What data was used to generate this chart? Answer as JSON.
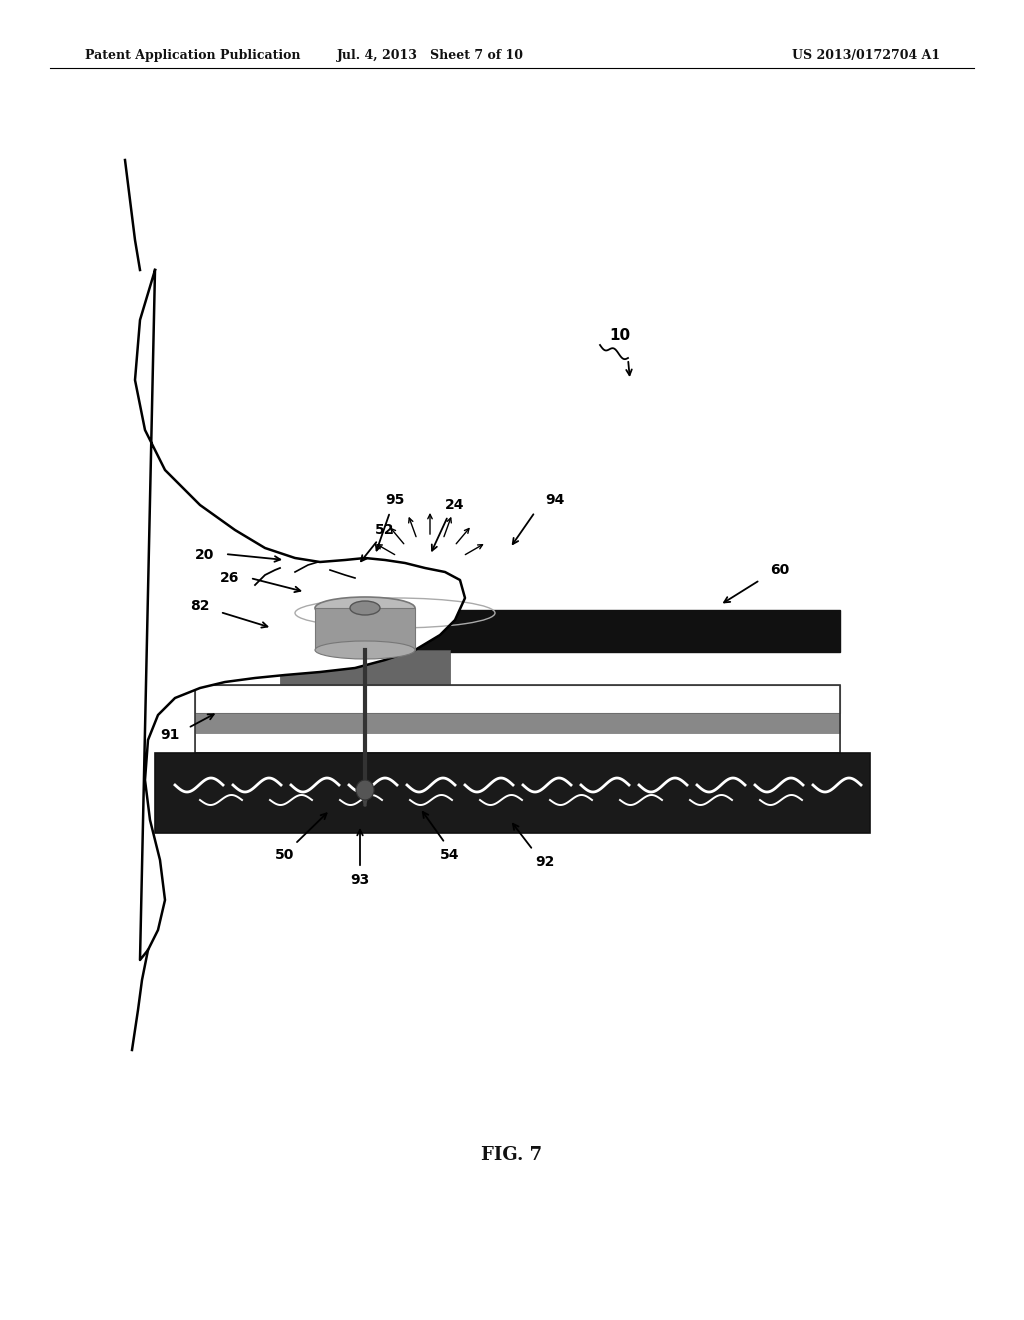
{
  "header_left": "Patent Application Publication",
  "header_mid": "Jul. 4, 2013   Sheet 7 of 10",
  "header_right": "US 2013/0172704 A1",
  "footer_label": "FIG. 7",
  "background_color": "#ffffff"
}
